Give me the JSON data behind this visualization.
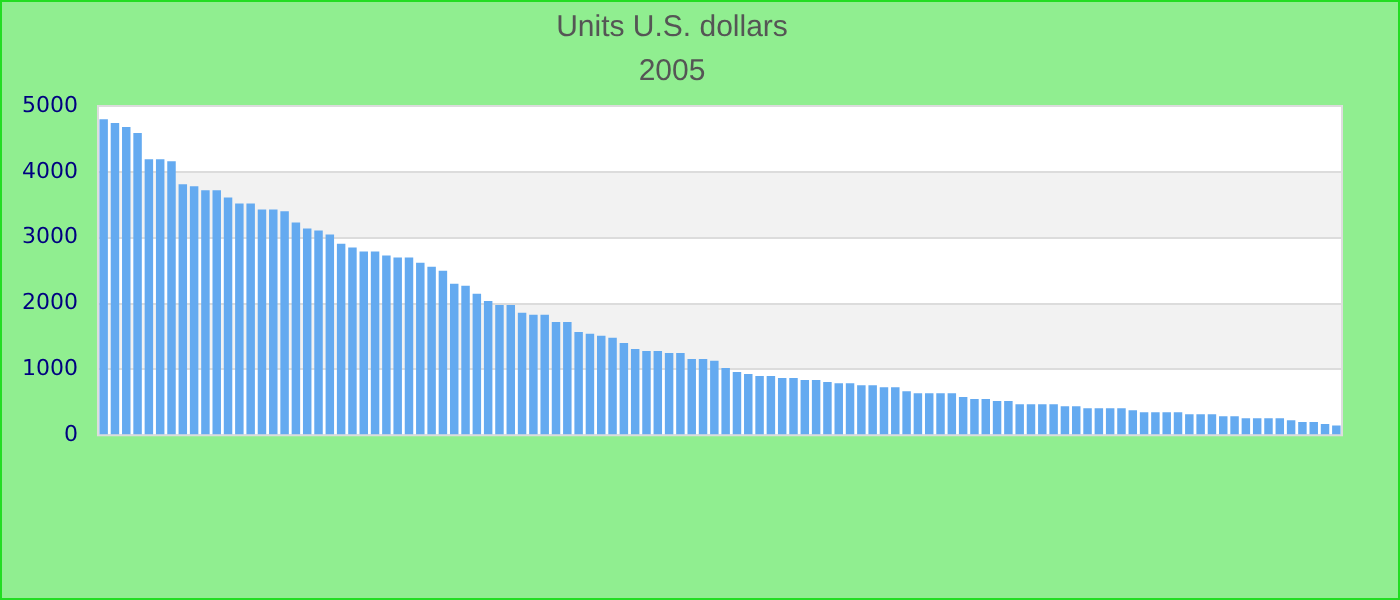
{
  "chart_data": {
    "type": "bar",
    "title": "Units U.S. dollars",
    "subtitle": "2005",
    "categories": [
      null,
      null,
      null,
      null,
      null,
      null,
      null,
      null,
      null,
      null,
      null,
      null,
      null,
      null,
      null,
      null,
      null,
      null,
      null,
      null,
      null,
      null,
      null,
      null,
      null,
      null,
      null,
      null,
      null,
      null,
      null,
      null,
      null,
      null,
      null,
      null,
      null,
      null,
      null,
      null,
      null,
      null,
      null,
      null,
      null,
      null,
      null,
      null,
      null,
      null,
      null,
      null,
      null,
      null,
      null,
      null,
      null,
      null,
      null,
      null,
      null,
      null,
      null,
      null,
      null,
      null,
      null,
      null,
      null,
      null,
      null,
      null,
      null,
      null,
      null,
      null,
      null,
      null,
      null,
      null,
      null,
      null,
      null,
      null,
      null,
      null,
      null,
      null,
      null,
      null,
      null,
      null,
      null,
      null,
      null,
      null,
      null,
      null,
      null,
      null,
      null,
      null,
      null,
      null,
      null,
      null,
      null,
      null,
      null,
      null
    ],
    "values": [
      4800,
      4740,
      4680,
      4590,
      4190,
      4190,
      4160,
      3810,
      3780,
      3720,
      3720,
      3610,
      3520,
      3520,
      3430,
      3430,
      3400,
      3230,
      3140,
      3110,
      3050,
      2910,
      2850,
      2790,
      2790,
      2730,
      2700,
      2700,
      2620,
      2560,
      2500,
      2300,
      2270,
      2150,
      2040,
      1980,
      1980,
      1860,
      1830,
      1830,
      1720,
      1720,
      1570,
      1540,
      1510,
      1480,
      1400,
      1310,
      1280,
      1280,
      1250,
      1250,
      1160,
      1160,
      1130,
      1020,
      960,
      930,
      900,
      900,
      870,
      870,
      840,
      840,
      810,
      790,
      790,
      760,
      760,
      730,
      730,
      670,
      640,
      640,
      640,
      640,
      580,
      550,
      550,
      520,
      520,
      470,
      470,
      470,
      470,
      440,
      440,
      410,
      410,
      410,
      410,
      380,
      350,
      350,
      350,
      350,
      320,
      320,
      320,
      290,
      290,
      260,
      260,
      260,
      260,
      230,
      200,
      200,
      170,
      150
    ],
    "color": "#64aaf0",
    "ylim": [
      0,
      5000
    ],
    "yticks": [
      0,
      1000,
      2000,
      3000,
      4000,
      5000
    ],
    "grid": "y"
  }
}
